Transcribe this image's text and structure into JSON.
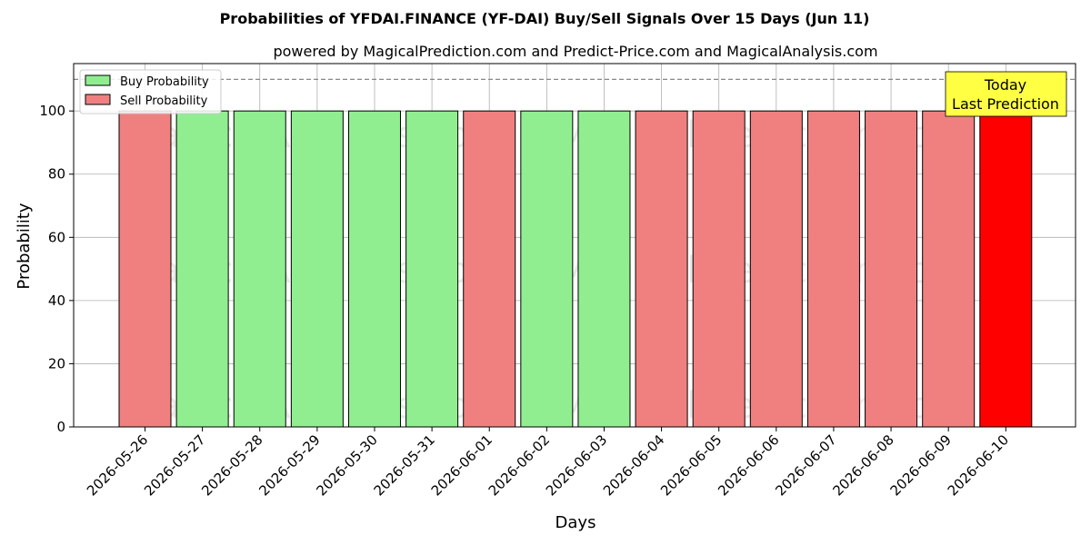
{
  "chart_data": {
    "type": "bar",
    "title": "Probabilities of YFDAI.FINANCE (YF-DAI) Buy/Sell Signals Over 15 Days (Jun 11)",
    "subtitle": "powered by MagicalPrediction.com and Predict-Price.com and MagicalAnalysis.com",
    "xlabel": "Days",
    "ylabel": "Probability",
    "ylim": [
      0,
      115
    ],
    "yticks": [
      0,
      20,
      40,
      60,
      80,
      100
    ],
    "grid": true,
    "legend_position": "top-left",
    "reference_line": 110,
    "categories": [
      "2026-05-26",
      "2026-05-27",
      "2026-05-28",
      "2026-05-29",
      "2026-05-30",
      "2026-05-31",
      "2026-06-01",
      "2026-06-02",
      "2026-06-03",
      "2026-06-04",
      "2026-06-05",
      "2026-06-06",
      "2026-06-07",
      "2026-06-08",
      "2026-06-09",
      "2026-06-10"
    ],
    "values": [
      100,
      100,
      100,
      100,
      100,
      100,
      100,
      100,
      100,
      100,
      100,
      100,
      100,
      100,
      100,
      100
    ],
    "signals": [
      "sell",
      "buy",
      "buy",
      "buy",
      "buy",
      "buy",
      "sell",
      "buy",
      "buy",
      "sell",
      "sell",
      "sell",
      "sell",
      "sell",
      "sell",
      "sell-today"
    ],
    "series": [
      {
        "name": "Buy Probability",
        "color": "#90ee90"
      },
      {
        "name": "Sell Probability",
        "color": "#f08080"
      }
    ],
    "today_color": "#ff0000",
    "annotation": {
      "line1": "Today",
      "line2": "Last Prediction",
      "color": "#ffff44"
    },
    "watermarks": [
      "MagicalAnalysis.com",
      "MagicalPrediction.com"
    ]
  }
}
